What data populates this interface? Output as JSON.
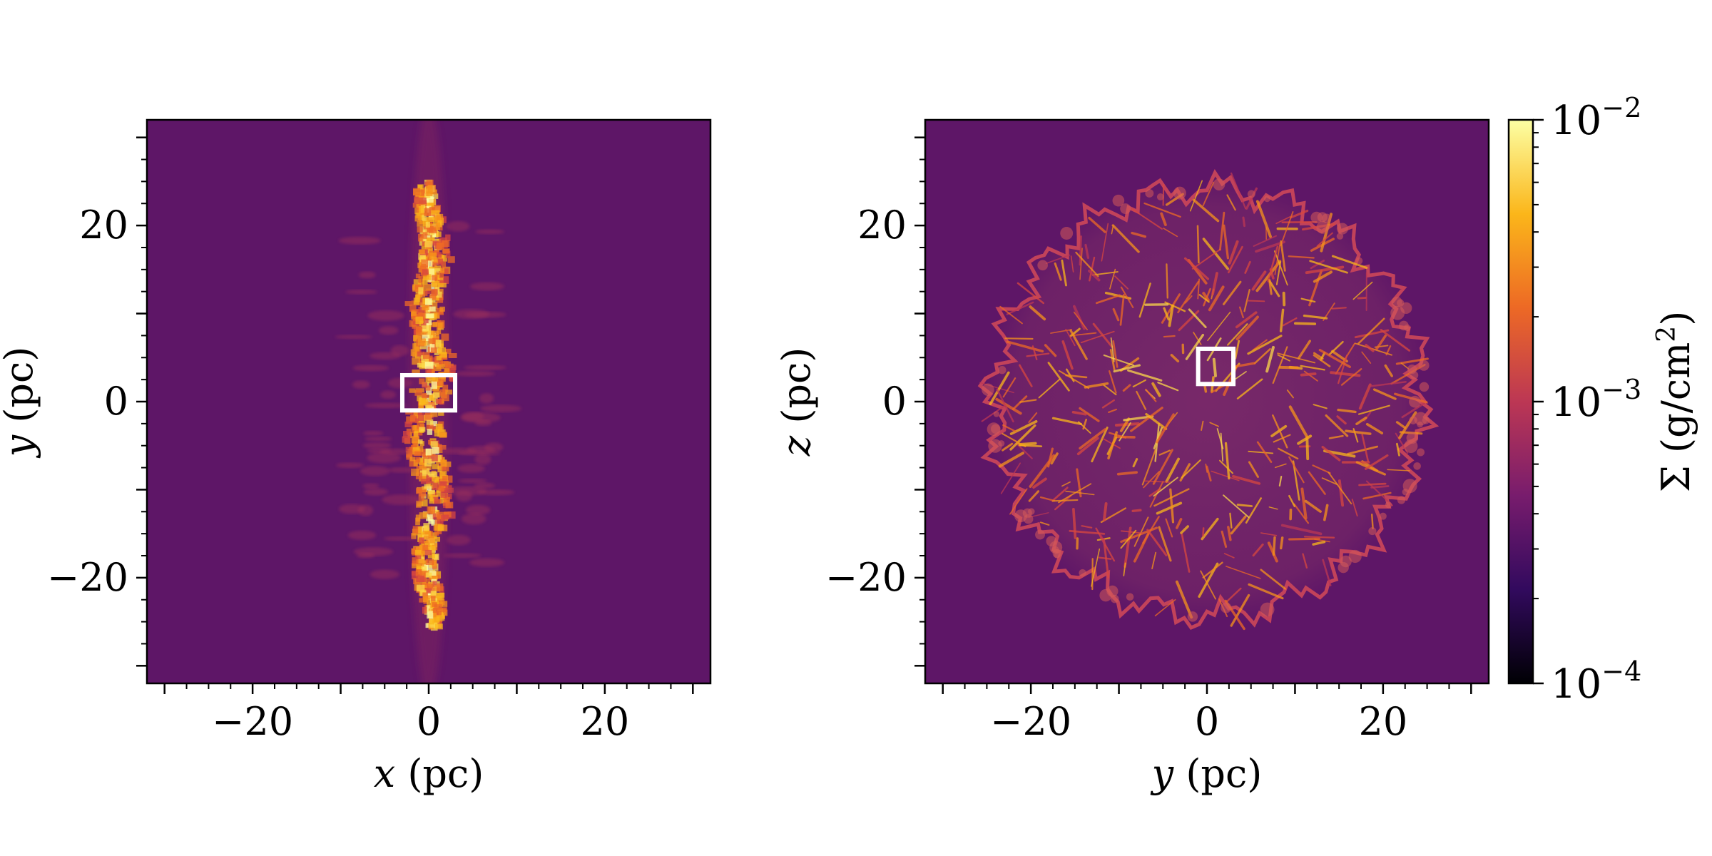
{
  "colors": {
    "background": "#5e1667",
    "colormap": [
      "#000004",
      "#320a5e",
      "#781c6d",
      "#bc3754",
      "#ed6925",
      "#fbb61a",
      "#fcffa4"
    ],
    "box": "#ffffff"
  },
  "chart_data": [
    {
      "type": "heatmap",
      "title": "",
      "xlabel": {
        "var": "x",
        "unit": " (pc)"
      },
      "ylabel": {
        "var": "y",
        "unit": " (pc)"
      },
      "xlim": [
        -32,
        32
      ],
      "ylim": [
        -32,
        32
      ],
      "xticks": [
        -20,
        0,
        20
      ],
      "yticks": [
        -20,
        0,
        20
      ],
      "xtick_labels": [
        "−20",
        "0",
        "20"
      ],
      "ytick_labels": [
        "−20",
        "0",
        "20"
      ],
      "structure": "edge-on filament along x = 0 spanning y = -26 to 25 pc",
      "highlight_box": {
        "x0": -3,
        "x1": 3,
        "y0": -1,
        "y1": 3
      }
    },
    {
      "type": "heatmap",
      "title": "",
      "xlabel": {
        "var": "y",
        "unit": " (pc)"
      },
      "ylabel": {
        "var": "z",
        "unit": " (pc)"
      },
      "xlim": [
        -32,
        32
      ],
      "ylim": [
        -32,
        32
      ],
      "xticks": [
        -20,
        0,
        20
      ],
      "yticks": [
        -20,
        0,
        20
      ],
      "xtick_labels": [
        "−20",
        "0",
        "20"
      ],
      "ytick_labels": [
        "−20",
        "0",
        "20"
      ],
      "structure": "face-on clumpy disk of radius ~25 pc centered at origin",
      "highlight_box": {
        "x0": -1,
        "x1": 3,
        "y0": 2,
        "y1": 6
      }
    }
  ],
  "colorbar": {
    "label": {
      "prefix": "Σ (g/cm",
      "sup": "2",
      "suffix": ")"
    },
    "scale": "log",
    "range": [
      0.0001,
      0.01
    ],
    "ticks": [
      {
        "value": 0.01,
        "base": "10",
        "exp": "−2"
      },
      {
        "value": 0.001,
        "base": "10",
        "exp": "−3"
      },
      {
        "value": 0.0001,
        "base": "10",
        "exp": "−4"
      }
    ]
  }
}
